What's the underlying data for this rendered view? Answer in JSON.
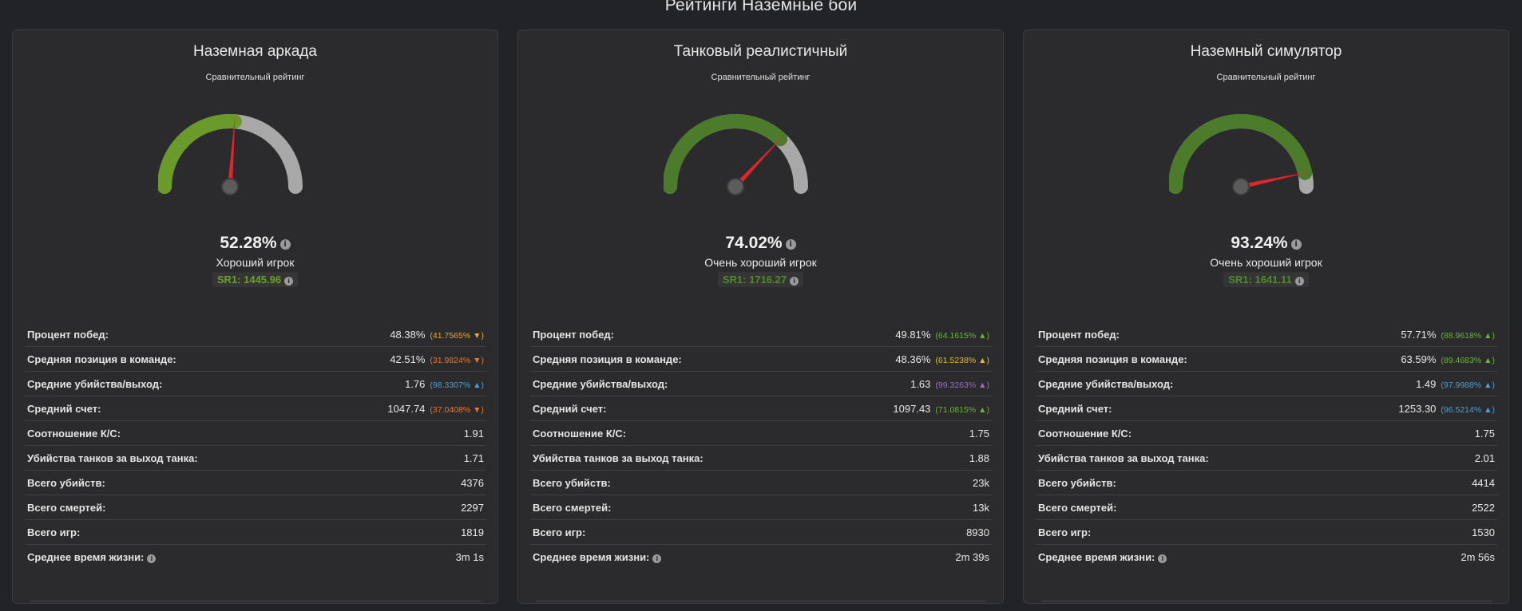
{
  "page_title": "Рейтинги Наземные бои",
  "colors": {
    "background": "#222326",
    "card": "#2b2b2d",
    "green_text": "#5b9b2e",
    "needle": "#e0262c",
    "track": "#a8a8a8"
  },
  "cards": [
    {
      "title": "Наземная аркада",
      "subtitle": "Сравнительный рейтинг",
      "gauge_value": 52.28,
      "gauge_color": "#6a9a2a",
      "percent": "52.28%",
      "grade": "Хороший игрок",
      "sr": "SR1: 1445.96",
      "sr_color": "#6aa02a",
      "stats": [
        {
          "label": "Процент побед:",
          "value": "48.38%",
          "extra": "(41.7565% ▼)",
          "extra_color": "#e7a632"
        },
        {
          "label": "Средняя позиция в команде:",
          "value": "42.51%",
          "extra": "(31.9824% ▼)",
          "extra_color": "#e5782b"
        },
        {
          "label": "Средние убийства/выход:",
          "value": "1.76",
          "extra": "(98.3307% ▲)",
          "extra_color": "#4c9fd0"
        },
        {
          "label": "Средний счет:",
          "value": "1047.74",
          "extra": "(37.0408% ▼)",
          "extra_color": "#e5782b"
        },
        {
          "label": "Соотношение К/С:",
          "value": "1.91",
          "extra": "",
          "extra_color": ""
        },
        {
          "label": "Убийства танков за выход танка:",
          "value": "1.71",
          "extra": "",
          "extra_color": ""
        },
        {
          "label": "Всего убийств:",
          "value": "4376",
          "extra": "",
          "extra_color": ""
        },
        {
          "label": "Всего смертей:",
          "value": "2297",
          "extra": "",
          "extra_color": ""
        },
        {
          "label": "Всего игр:",
          "value": "1819",
          "extra": "",
          "extra_color": ""
        },
        {
          "label": "Среднее время жизни:",
          "value": "3m 1s",
          "extra": "",
          "extra_color": "",
          "info": true
        }
      ]
    },
    {
      "title": "Танковый реалистичный",
      "subtitle": "Сравнительный рейтинг",
      "gauge_value": 74.02,
      "gauge_color": "#4b7b2b",
      "percent": "74.02%",
      "grade": "Очень хороший игрок",
      "sr": "SR1: 1716.27",
      "sr_color": "#4e8a2d",
      "stats": [
        {
          "label": "Процент побед:",
          "value": "49.81%",
          "extra": "(64.1615% ▲)",
          "extra_color": "#6bb33a"
        },
        {
          "label": "Средняя позиция в команде:",
          "value": "48.36%",
          "extra": "(61.5238% ▲)",
          "extra_color": "#e7b832"
        },
        {
          "label": "Средние убийства/выход:",
          "value": "1.63",
          "extra": "(99.3263% ▲)",
          "extra_color": "#9b6bc9"
        },
        {
          "label": "Средний счет:",
          "value": "1097.43",
          "extra": "(71.0815% ▲)",
          "extra_color": "#6bb33a"
        },
        {
          "label": "Соотношение К/С:",
          "value": "1.75",
          "extra": "",
          "extra_color": ""
        },
        {
          "label": "Убийства танков за выход танка:",
          "value": "1.88",
          "extra": "",
          "extra_color": ""
        },
        {
          "label": "Всего убийств:",
          "value": "23k",
          "extra": "",
          "extra_color": ""
        },
        {
          "label": "Всего смертей:",
          "value": "13k",
          "extra": "",
          "extra_color": ""
        },
        {
          "label": "Всего игр:",
          "value": "8930",
          "extra": "",
          "extra_color": ""
        },
        {
          "label": "Среднее время жизни:",
          "value": "2m 39s",
          "extra": "",
          "extra_color": "",
          "info": true
        }
      ]
    },
    {
      "title": "Наземный симулятор",
      "subtitle": "Сравнительный рейтинг",
      "gauge_value": 93.24,
      "gauge_color": "#4b7b2b",
      "percent": "93.24%",
      "grade": "Очень хороший игрок",
      "sr": "SR1: 1641.11",
      "sr_color": "#4e8a2d",
      "stats": [
        {
          "label": "Процент побед:",
          "value": "57.71%",
          "extra": "(88.9618% ▲)",
          "extra_color": "#6bb33a"
        },
        {
          "label": "Средняя позиция в команде:",
          "value": "63.59%",
          "extra": "(89.4683% ▲)",
          "extra_color": "#6bb33a"
        },
        {
          "label": "Средние убийства/выход:",
          "value": "1.49",
          "extra": "(97.9988% ▲)",
          "extra_color": "#4c9fd0"
        },
        {
          "label": "Средний счет:",
          "value": "1253.30",
          "extra": "(96.5214% ▲)",
          "extra_color": "#4c9fd0"
        },
        {
          "label": "Соотношение К/С:",
          "value": "1.75",
          "extra": "",
          "extra_color": ""
        },
        {
          "label": "Убийства танков за выход танка:",
          "value": "2.01",
          "extra": "",
          "extra_color": ""
        },
        {
          "label": "Всего убийств:",
          "value": "4414",
          "extra": "",
          "extra_color": ""
        },
        {
          "label": "Всего смертей:",
          "value": "2522",
          "extra": "",
          "extra_color": ""
        },
        {
          "label": "Всего игр:",
          "value": "1530",
          "extra": "",
          "extra_color": ""
        },
        {
          "label": "Среднее время жизни:",
          "value": "2m 56s",
          "extra": "",
          "extra_color": "",
          "info": true
        }
      ]
    }
  ]
}
